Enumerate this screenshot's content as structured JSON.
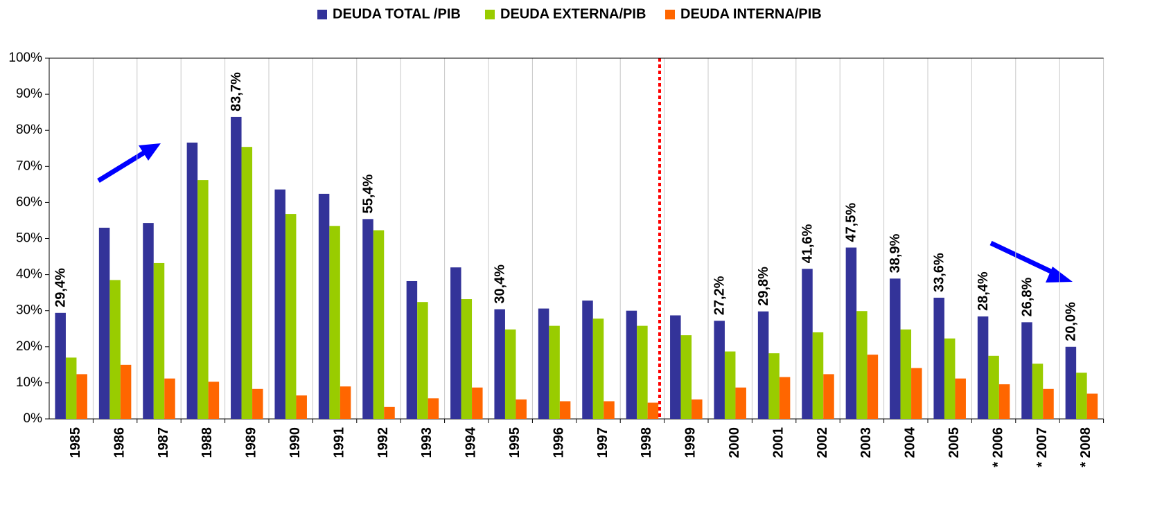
{
  "chart_data": {
    "type": "bar",
    "categories": [
      "1985",
      "1986",
      "1987",
      "1988",
      "1989",
      "1990",
      "1991",
      "1992",
      "1993",
      "1994",
      "1995",
      "1996",
      "1997",
      "1998",
      "1999",
      "2000",
      "2001",
      "2002",
      "2003",
      "2004",
      "2005",
      "* 2006",
      "* 2007",
      "* 2008"
    ],
    "series": [
      {
        "name": "DEUDA TOTAL /PIB",
        "color": "#333399",
        "values": [
          29.4,
          53,
          54.3,
          76.6,
          83.7,
          63.6,
          62.4,
          55.4,
          38.2,
          42,
          30.4,
          30.6,
          32.8,
          30,
          28.7,
          27.2,
          29.8,
          41.6,
          47.5,
          38.9,
          33.6,
          28.4,
          26.8,
          20.0
        ],
        "value_labels": [
          "29,4%",
          null,
          null,
          null,
          "83,7%",
          null,
          null,
          "55,4%",
          null,
          null,
          "30,4%",
          null,
          null,
          null,
          null,
          "27,2%",
          "29,8%",
          "41,6%",
          "47,5%",
          "38,9%",
          "33,6%",
          "28,4%",
          "26,8%",
          "20,0%"
        ]
      },
      {
        "name": "DEUDA EXTERNA/PIB",
        "color": "#99cc00",
        "values": [
          17,
          38.5,
          43.2,
          66.2,
          75.4,
          56.8,
          53.5,
          52.3,
          32.4,
          33.2,
          24.8,
          25.8,
          27.8,
          25.8,
          23.2,
          18.7,
          18.2,
          24,
          29.9,
          24.8,
          22.3,
          17.5,
          15.3,
          12.8
        ]
      },
      {
        "name": "DEUDA INTERNA/PIB",
        "color": "#ff6600",
        "values": [
          12.4,
          15,
          11.2,
          10.3,
          8.3,
          6.5,
          9,
          3.3,
          5.7,
          8.7,
          5.4,
          4.9,
          4.9,
          4.5,
          5.4,
          8.7,
          11.6,
          12.4,
          17.8,
          14.1,
          11.2,
          9.6,
          8.3,
          7
        ]
      }
    ],
    "ylim": [
      0,
      100
    ],
    "yticks": [
      {
        "value": 0,
        "label": "0%"
      },
      {
        "value": 10,
        "label": "10%"
      },
      {
        "value": 20,
        "label": "20%"
      },
      {
        "value": 30,
        "label": "30%"
      },
      {
        "value": 40,
        "label": "40%"
      },
      {
        "value": 50,
        "label": "50%"
      },
      {
        "value": 60,
        "label": "60%"
      },
      {
        "value": 70,
        "label": "70%"
      },
      {
        "value": 80,
        "label": "80%"
      },
      {
        "value": 90,
        "label": "90%"
      },
      {
        "value": 100,
        "label": "100%"
      }
    ],
    "grid": true,
    "legend": "top"
  }
}
